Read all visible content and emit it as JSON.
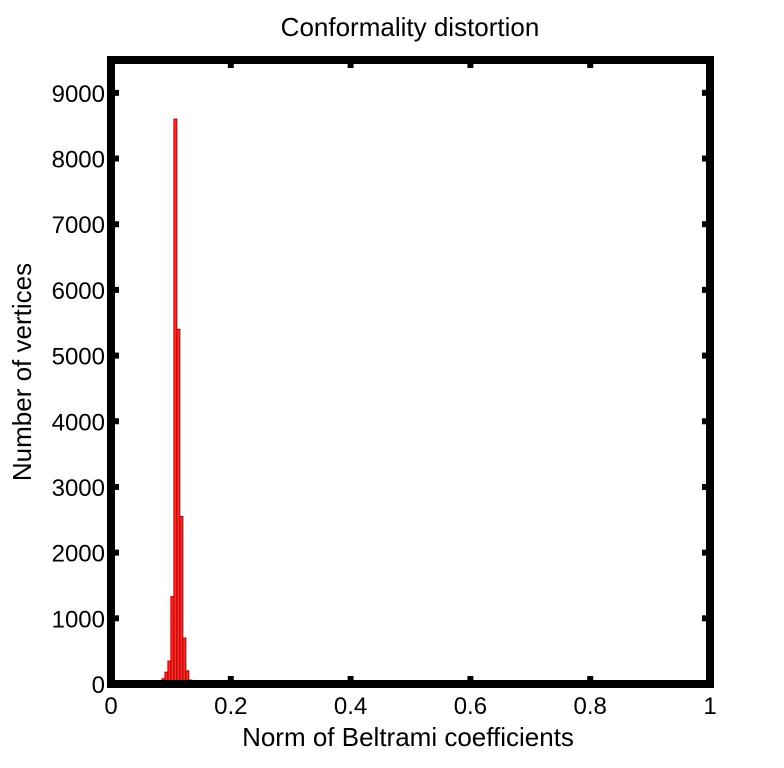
{
  "chart_data": {
    "type": "bar",
    "title": "Conformality distortion",
    "xlabel": "Norm of Beltrami coefficients",
    "ylabel": "Number of vertices",
    "xlim": [
      0,
      1
    ],
    "ylim": [
      0,
      9500
    ],
    "xticks": [
      0,
      0.2,
      0.4,
      0.6,
      0.8,
      1
    ],
    "xtick_labels": [
      "0",
      "0.2",
      "0.4",
      "0.6",
      "0.8",
      "1"
    ],
    "yticks": [
      0,
      1000,
      2000,
      3000,
      4000,
      5000,
      6000,
      7000,
      8000,
      9000
    ],
    "ytick_labels": [
      "0",
      "1000",
      "2000",
      "3000",
      "4000",
      "5000",
      "6000",
      "7000",
      "8000",
      "9000"
    ],
    "grid": false,
    "bin_width": 0.005,
    "bins": [
      {
        "x": 0.08,
        "value": 30
      },
      {
        "x": 0.085,
        "value": 80
      },
      {
        "x": 0.09,
        "value": 180
      },
      {
        "x": 0.095,
        "value": 350
      },
      {
        "x": 0.1,
        "value": 1330
      },
      {
        "x": 0.105,
        "value": 8600
      },
      {
        "x": 0.11,
        "value": 5400
      },
      {
        "x": 0.115,
        "value": 2550
      },
      {
        "x": 0.12,
        "value": 700
      },
      {
        "x": 0.125,
        "value": 200
      },
      {
        "x": 0.13,
        "value": 60
      }
    ],
    "colors": {
      "bar_fill": "#ff2a2a",
      "bar_edge": "#b00000",
      "axes": "#000000"
    }
  }
}
